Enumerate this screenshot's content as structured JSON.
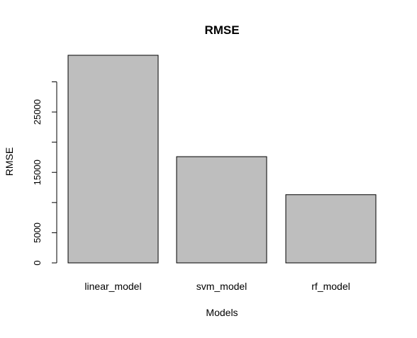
{
  "chart_data": {
    "type": "bar",
    "title": "RMSE",
    "xlabel": "Models",
    "ylabel": "RMSE",
    "categories": [
      "linear_model",
      "svm_model",
      "rf_model"
    ],
    "values": [
      34400,
      17600,
      11300
    ],
    "ylim": [
      0,
      34400
    ],
    "yticks": [
      0,
      5000,
      10000,
      15000,
      20000,
      25000,
      30000
    ],
    "ytick_labels": [
      "0",
      "5000",
      "",
      "15000",
      "",
      "25000",
      ""
    ],
    "bar_color": "#bebebe",
    "grid": false,
    "legend": "none"
  }
}
